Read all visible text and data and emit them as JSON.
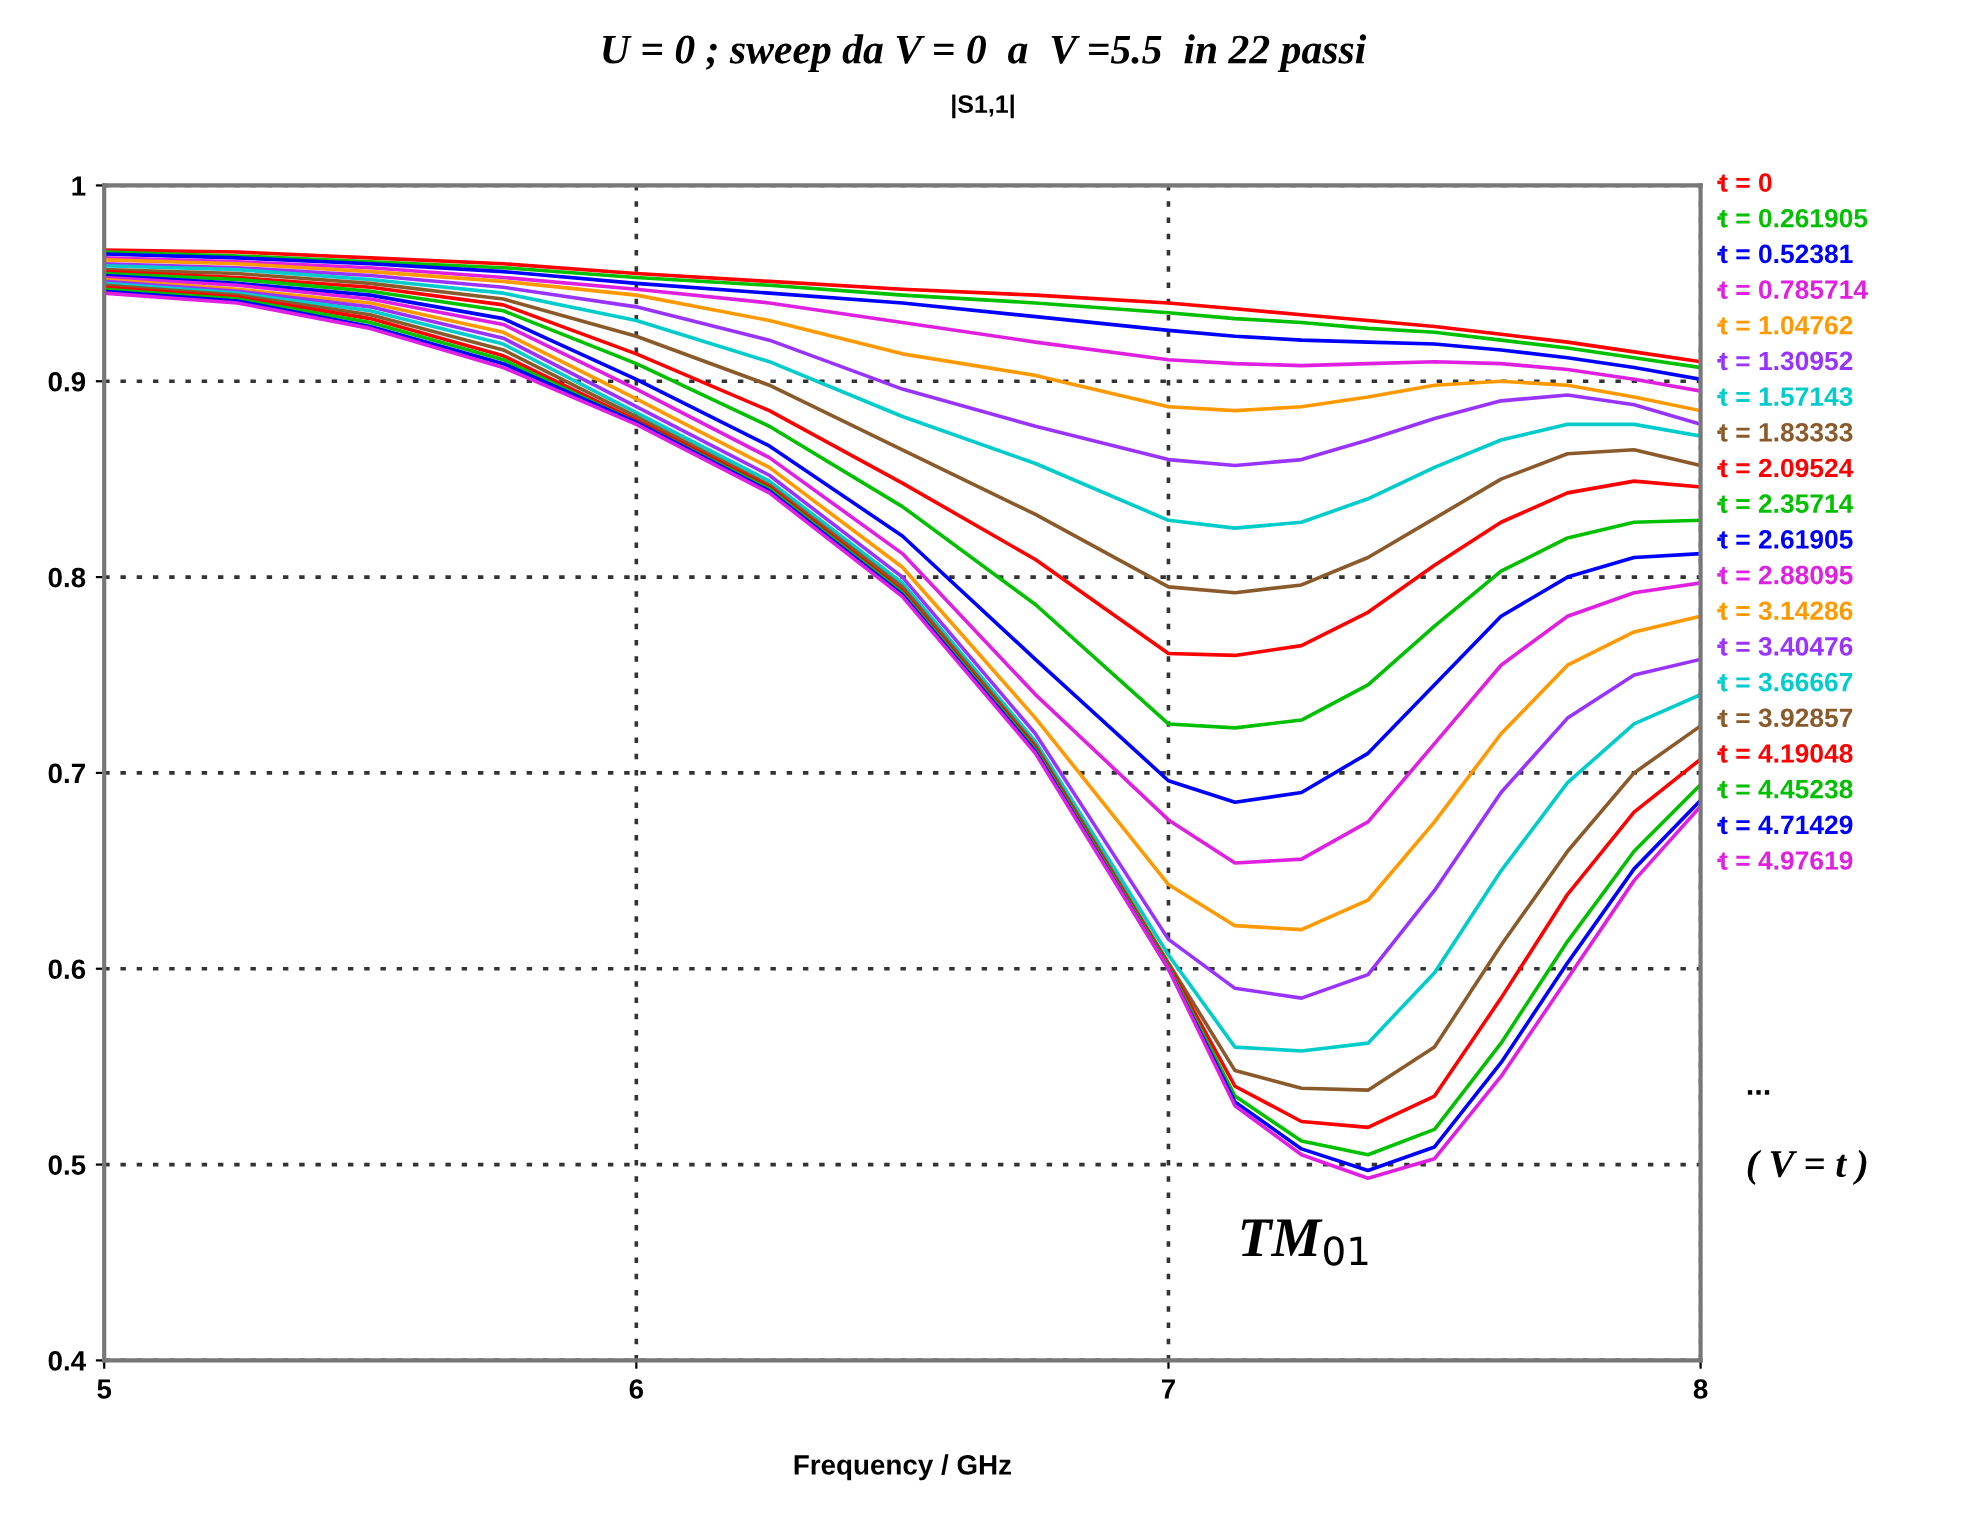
{
  "chart_data": {
    "type": "line",
    "title": "U = 0 ; sweep da V = 0  a  V =5.5  in 22 passi",
    "subtitle": "|S1,1|",
    "xlabel": "Frequency / GHz",
    "x": [
      5,
      5.25,
      5.5,
      5.75,
      6,
      6.25,
      6.5,
      6.75,
      7,
      7.125,
      7.25,
      7.375,
      7.5,
      7.625,
      7.75,
      7.875,
      8
    ],
    "xlim": [
      5,
      8
    ],
    "xticks": [
      5,
      6,
      7,
      8
    ],
    "ylim": [
      0.4,
      1
    ],
    "yticks": [
      0.4,
      0.5,
      0.6,
      0.7,
      0.8,
      0.9,
      1
    ],
    "grid": true,
    "legend": "right",
    "line_style": "solid",
    "annotations": [
      "...",
      "( V = t )",
      "TM$_{01}$"
    ],
    "series": [
      {
        "name": "t = 0",
        "color": "#ff0000",
        "values": [
          0.967,
          0.966,
          0.963,
          0.96,
          0.955,
          0.951,
          0.947,
          0.944,
          0.94,
          0.937,
          0.934,
          0.931,
          0.928,
          0.924,
          0.92,
          0.915,
          0.91
        ]
      },
      {
        "name": "t = 0.261905",
        "color": "#00c000",
        "values": [
          0.966,
          0.964,
          0.961,
          0.958,
          0.953,
          0.949,
          0.944,
          0.94,
          0.935,
          0.932,
          0.93,
          0.927,
          0.925,
          0.921,
          0.917,
          0.912,
          0.907
        ]
      },
      {
        "name": "t = 0.52381",
        "color": "#0000ff",
        "values": [
          0.965,
          0.963,
          0.96,
          0.956,
          0.95,
          0.945,
          0.94,
          0.933,
          0.926,
          0.923,
          0.921,
          0.92,
          0.919,
          0.916,
          0.912,
          0.907,
          0.901
        ]
      },
      {
        "name": "t = 0.785714",
        "color": "#e020e0",
        "values": [
          0.963,
          0.961,
          0.958,
          0.953,
          0.947,
          0.94,
          0.93,
          0.92,
          0.911,
          0.909,
          0.908,
          0.909,
          0.91,
          0.909,
          0.906,
          0.901,
          0.895
        ]
      },
      {
        "name": "t = 1.04762",
        "color": "#ff9900",
        "values": [
          0.962,
          0.96,
          0.956,
          0.951,
          0.944,
          0.931,
          0.914,
          0.903,
          0.887,
          0.885,
          0.887,
          0.892,
          0.898,
          0.9,
          0.898,
          0.892,
          0.885
        ]
      },
      {
        "name": "t = 1.30952",
        "color": "#9933ff",
        "values": [
          0.96,
          0.958,
          0.954,
          0.948,
          0.938,
          0.921,
          0.896,
          0.877,
          0.86,
          0.857,
          0.86,
          0.87,
          0.881,
          0.89,
          0.893,
          0.888,
          0.878
        ]
      },
      {
        "name": "t = 1.57143",
        "color": "#00cccc",
        "values": [
          0.959,
          0.957,
          0.952,
          0.945,
          0.931,
          0.91,
          0.882,
          0.858,
          0.829,
          0.825,
          0.828,
          0.84,
          0.856,
          0.87,
          0.878,
          0.878,
          0.872
        ]
      },
      {
        "name": "t = 1.83333",
        "color": "#8b5a2b",
        "values": [
          0.957,
          0.955,
          0.95,
          0.942,
          0.923,
          0.898,
          0.865,
          0.832,
          0.795,
          0.792,
          0.796,
          0.81,
          0.83,
          0.85,
          0.863,
          0.865,
          0.857
        ]
      },
      {
        "name": "t = 2.09524",
        "color": "#ff0000",
        "values": [
          0.956,
          0.953,
          0.948,
          0.939,
          0.914,
          0.885,
          0.848,
          0.809,
          0.761,
          0.76,
          0.765,
          0.782,
          0.806,
          0.828,
          0.843,
          0.849,
          0.846
        ]
      },
      {
        "name": "t = 2.35714",
        "color": "#00c000",
        "values": [
          0.955,
          0.952,
          0.946,
          0.936,
          0.909,
          0.877,
          0.836,
          0.786,
          0.725,
          0.723,
          0.727,
          0.745,
          0.775,
          0.803,
          0.82,
          0.828,
          0.829
        ]
      },
      {
        "name": "t = 2.61905",
        "color": "#0000ff",
        "values": [
          0.954,
          0.95,
          0.944,
          0.932,
          0.901,
          0.867,
          0.821,
          0.758,
          0.696,
          0.685,
          0.69,
          0.71,
          0.745,
          0.78,
          0.8,
          0.81,
          0.812
        ]
      },
      {
        "name": "t = 2.88095",
        "color": "#e020e0",
        "values": [
          0.953,
          0.949,
          0.942,
          0.929,
          0.896,
          0.861,
          0.812,
          0.74,
          0.676,
          0.654,
          0.656,
          0.675,
          0.715,
          0.755,
          0.78,
          0.792,
          0.797
        ]
      },
      {
        "name": "t = 3.14286",
        "color": "#ff9900",
        "values": [
          0.952,
          0.947,
          0.94,
          0.925,
          0.891,
          0.856,
          0.805,
          0.728,
          0.643,
          0.622,
          0.62,
          0.635,
          0.675,
          0.72,
          0.755,
          0.772,
          0.78
        ]
      },
      {
        "name": "t = 3.40476",
        "color": "#9933ff",
        "values": [
          0.951,
          0.946,
          0.938,
          0.922,
          0.887,
          0.852,
          0.8,
          0.72,
          0.615,
          0.59,
          0.585,
          0.597,
          0.64,
          0.69,
          0.728,
          0.75,
          0.758
        ]
      },
      {
        "name": "t = 3.66667",
        "color": "#00cccc",
        "values": [
          0.95,
          0.945,
          0.936,
          0.919,
          0.884,
          0.849,
          0.797,
          0.716,
          0.607,
          0.56,
          0.558,
          0.562,
          0.598,
          0.65,
          0.695,
          0.725,
          0.74
        ]
      },
      {
        "name": "t = 3.92857",
        "color": "#8b5a2b",
        "values": [
          0.949,
          0.944,
          0.934,
          0.916,
          0.882,
          0.847,
          0.795,
          0.714,
          0.603,
          0.548,
          0.539,
          0.538,
          0.56,
          0.612,
          0.66,
          0.7,
          0.724
        ]
      },
      {
        "name": "t = 4.19048",
        "color": "#ff0000",
        "values": [
          0.948,
          0.943,
          0.932,
          0.913,
          0.88,
          0.846,
          0.793,
          0.713,
          0.602,
          0.54,
          0.522,
          0.519,
          0.535,
          0.585,
          0.638,
          0.68,
          0.707
        ]
      },
      {
        "name": "t = 4.45238",
        "color": "#00c000",
        "values": [
          0.947,
          0.942,
          0.93,
          0.911,
          0.879,
          0.845,
          0.792,
          0.712,
          0.601,
          0.535,
          0.512,
          0.505,
          0.518,
          0.562,
          0.614,
          0.66,
          0.694
        ]
      },
      {
        "name": "t = 4.71429",
        "color": "#0000ff",
        "values": [
          0.946,
          0.941,
          0.928,
          0.909,
          0.879,
          0.844,
          0.791,
          0.711,
          0.6,
          0.532,
          0.508,
          0.497,
          0.509,
          0.552,
          0.603,
          0.651,
          0.686
        ]
      },
      {
        "name": "t = 4.97619",
        "color": "#e020e0",
        "values": [
          0.945,
          0.94,
          0.927,
          0.907,
          0.878,
          0.843,
          0.79,
          0.71,
          0.6,
          0.53,
          0.505,
          0.493,
          0.503,
          0.545,
          0.595,
          0.645,
          0.683
        ]
      }
    ]
  }
}
